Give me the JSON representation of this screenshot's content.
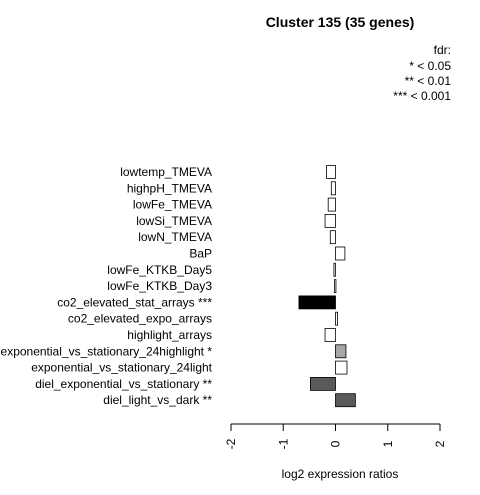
{
  "chart_data": {
    "type": "bar",
    "orientation": "horizontal",
    "title": "Cluster 135 (35 genes)",
    "xlabel": "log2 expression ratios",
    "ylabel": "",
    "xlim": [
      -2,
      2
    ],
    "xticks": [
      "-2",
      "-1",
      "0",
      "1",
      "2"
    ],
    "legend": {
      "title": "fdr:",
      "entries": [
        "* < 0.05",
        "** < 0.01",
        "*** < 0.001"
      ],
      "position": "top-right"
    },
    "categories": [
      "lowtemp_TMEVA",
      "highpH_TMEVA",
      "lowFe_TMEVA",
      "lowSi_TMEVA",
      "lowN_TMEVA",
      "BaP",
      "lowFe_KTKB_Day5",
      "lowFe_KTKB_Day3",
      "co2_elevated_stat_arrays ***",
      "co2_elevated_expo_arrays",
      "highlight_arrays",
      "exponential_vs_stationary_24highlight *",
      "exponential_vs_stationary_24light",
      "diel_exponential_vs_stationary **",
      "diel_light_vs_dark **"
    ],
    "values": [
      -0.17,
      -0.08,
      -0.14,
      -0.2,
      -0.1,
      0.18,
      -0.03,
      -0.02,
      -0.7,
      0.04,
      -0.2,
      0.2,
      0.22,
      -0.48,
      0.38
    ],
    "colors": [
      "#ffffff",
      "#ffffff",
      "#ffffff",
      "#ffffff",
      "#ffffff",
      "#ffffff",
      "#ffffff",
      "#ffffff",
      "#000000",
      "#ffffff",
      "#ffffff",
      "#a6a6a6",
      "#ffffff",
      "#5a5a5a",
      "#5a5a5a"
    ]
  }
}
